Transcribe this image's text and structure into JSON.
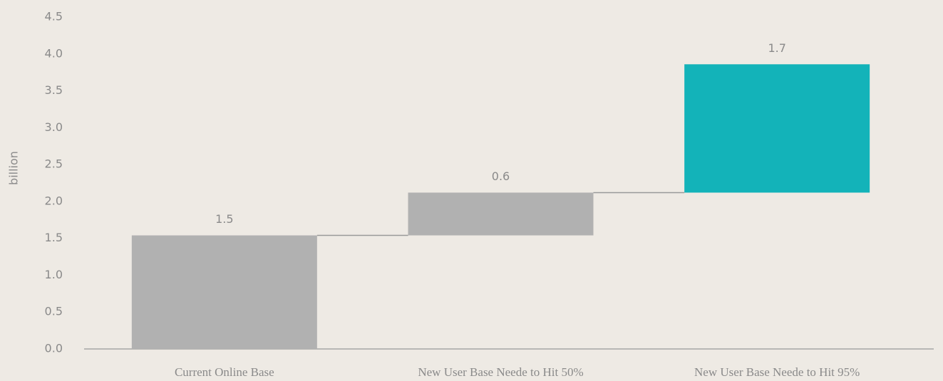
{
  "chart_data": {
    "type": "waterfall",
    "y_label": "billion",
    "categories": [
      "Current Online Base",
      "New User Base Neede to Hit 50%",
      "New User Base Neede to Hit 95%"
    ],
    "values": [
      1.54,
      0.58,
      1.74
    ],
    "value_labels": [
      "1.5",
      "0.6",
      "1.7"
    ],
    "colors": [
      "#b1b1b1",
      "#b1b1b1",
      "#13b3b9"
    ],
    "ylim": [
      0,
      4.5
    ],
    "yticks": [
      {
        "value": 0,
        "label": "0.0"
      },
      0.5,
      {
        "value": 1,
        "label": "1.0"
      },
      1.5,
      {
        "value": 2,
        "label": "2.0"
      },
      2.5,
      {
        "value": 3,
        "label": "3.0"
      },
      3.5,
      {
        "value": 4,
        "label": "4.0"
      },
      4.5
    ],
    "grid": false
  }
}
